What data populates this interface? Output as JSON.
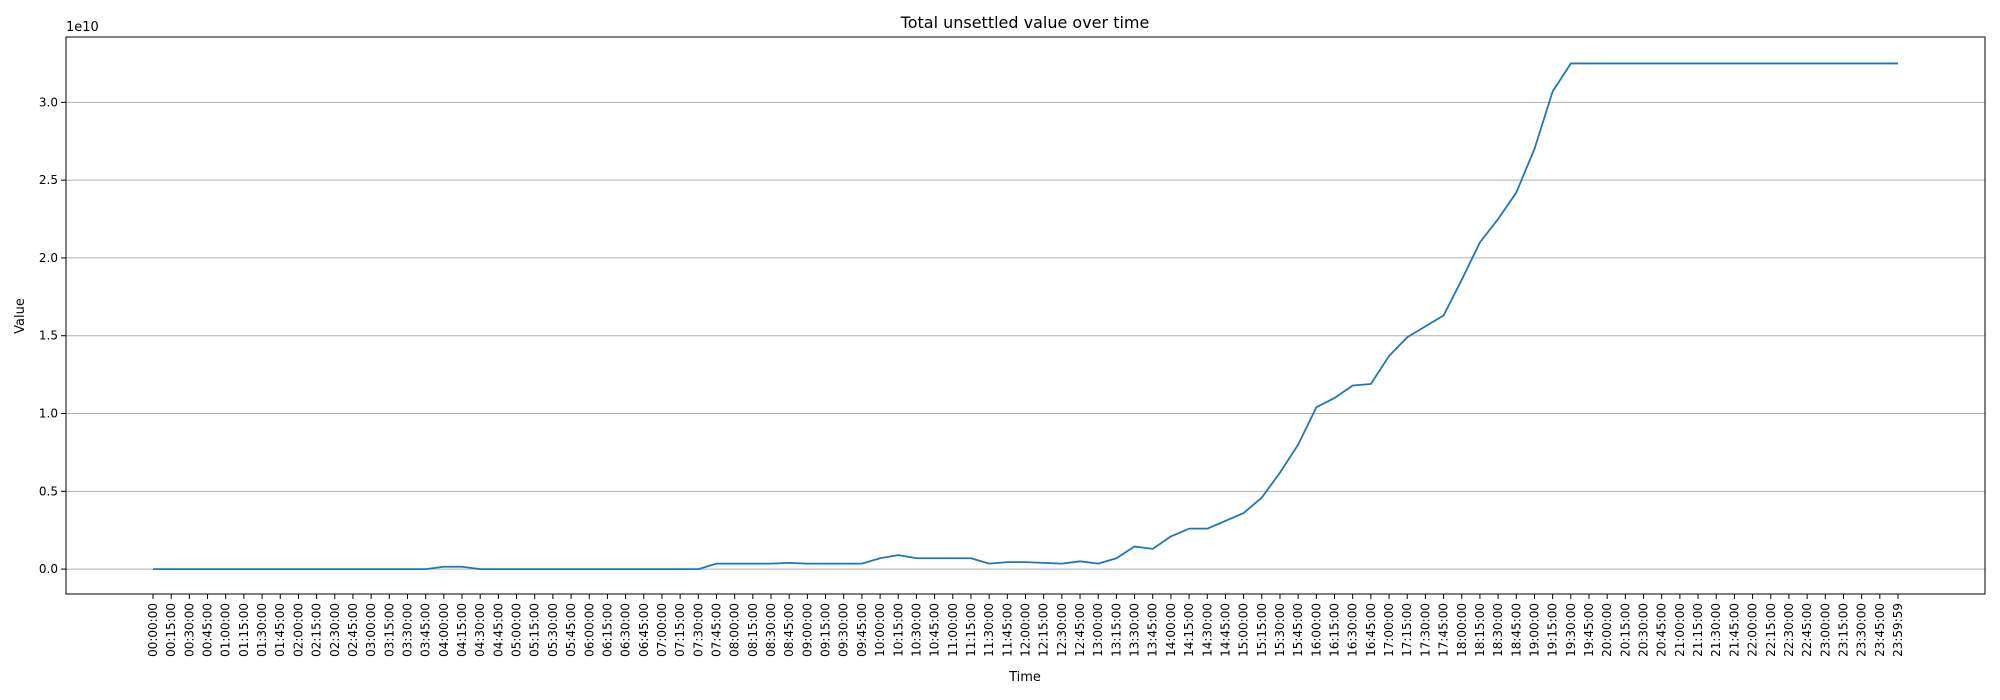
{
  "chart_data": {
    "type": "line",
    "title": "Total unsettled value over time",
    "xlabel": "Time",
    "ylabel": "Value",
    "y_offset_label": "1e10",
    "y_scale_factor": 10000000000,
    "ylim": [
      -1.6,
      34.2
    ],
    "yticks": [
      0.0,
      5.0,
      10.0,
      15.0,
      20.0,
      25.0,
      30.0
    ],
    "ytick_labels": [
      "0.0",
      "0.5",
      "1.0",
      "1.5",
      "2.0",
      "2.5",
      "3.0"
    ],
    "grid": "y",
    "line_color": "#1f77b4",
    "x": [
      "00:00:00",
      "00:15:00",
      "00:30:00",
      "00:45:00",
      "01:00:00",
      "01:15:00",
      "01:30:00",
      "01:45:00",
      "02:00:00",
      "02:15:00",
      "02:30:00",
      "02:45:00",
      "03:00:00",
      "03:15:00",
      "03:30:00",
      "03:45:00",
      "04:00:00",
      "04:15:00",
      "04:30:00",
      "04:45:00",
      "05:00:00",
      "05:15:00",
      "05:30:00",
      "05:45:00",
      "06:00:00",
      "06:15:00",
      "06:30:00",
      "06:45:00",
      "07:00:00",
      "07:15:00",
      "07:30:00",
      "07:45:00",
      "08:00:00",
      "08:15:00",
      "08:30:00",
      "08:45:00",
      "09:00:00",
      "09:15:00",
      "09:30:00",
      "09:45:00",
      "10:00:00",
      "10:15:00",
      "10:30:00",
      "10:45:00",
      "11:00:00",
      "11:15:00",
      "11:30:00",
      "11:45:00",
      "12:00:00",
      "12:15:00",
      "12:30:00",
      "12:45:00",
      "13:00:00",
      "13:15:00",
      "13:30:00",
      "13:45:00",
      "14:00:00",
      "14:15:00",
      "14:30:00",
      "14:45:00",
      "15:00:00",
      "15:15:00",
      "15:30:00",
      "15:45:00",
      "16:00:00",
      "16:15:00",
      "16:30:00",
      "16:45:00",
      "17:00:00",
      "17:15:00",
      "17:30:00",
      "17:45:00",
      "18:00:00",
      "18:15:00",
      "18:30:00",
      "18:45:00",
      "19:00:00",
      "19:15:00",
      "19:30:00",
      "19:45:00",
      "20:00:00",
      "20:15:00",
      "20:30:00",
      "20:45:00",
      "21:00:00",
      "21:15:00",
      "21:30:00",
      "21:45:00",
      "22:00:00",
      "22:15:00",
      "22:30:00",
      "22:45:00",
      "23:00:00",
      "23:15:00",
      "23:30:00",
      "23:45:00",
      "23:59:59"
    ],
    "series": [
      {
        "values": [
          0,
          0,
          0,
          0,
          0,
          0,
          0,
          0,
          0,
          0,
          0,
          0,
          0,
          0,
          0,
          0,
          0.15,
          0.15,
          0,
          0,
          0,
          0,
          0,
          0,
          0,
          0,
          0,
          0,
          0,
          0,
          0,
          0.35,
          0.35,
          0.35,
          0.35,
          0.4,
          0.35,
          0.35,
          0.35,
          0.35,
          0.7,
          0.9,
          0.7,
          0.7,
          0.7,
          0.7,
          0.35,
          0.45,
          0.45,
          0.4,
          0.35,
          0.5,
          0.35,
          0.7,
          1.45,
          1.3,
          2.1,
          2.6,
          2.6,
          3.1,
          3.6,
          4.6,
          6.2,
          8.0,
          10.4,
          11.0,
          11.8,
          11.9,
          13.7,
          14.9,
          15.6,
          16.3,
          18.6,
          21.0,
          22.5,
          24.2,
          27.0,
          30.7,
          32.5,
          32.5,
          32.5,
          32.5,
          32.5,
          32.5,
          32.5,
          32.5,
          32.5,
          32.5,
          32.5,
          32.5,
          32.5,
          32.5,
          32.5,
          32.5,
          32.5,
          32.5,
          32.5
        ]
      }
    ]
  }
}
